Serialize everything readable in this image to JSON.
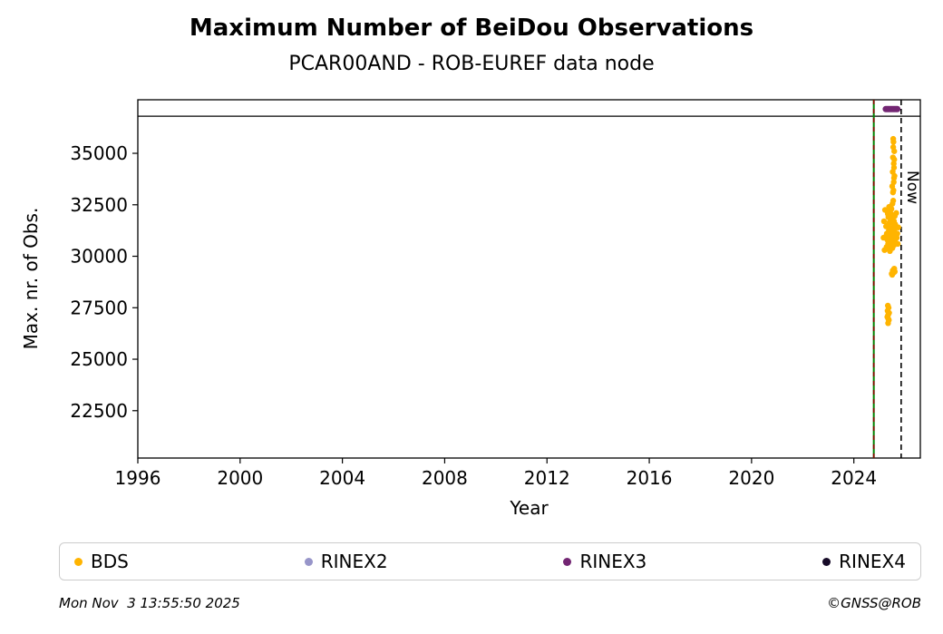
{
  "title": "Maximum Number of BeiDou Observations",
  "subtitle": "PCAR00AND - ROB-EUREF data node",
  "footer": {
    "timestamp": "Mon Nov  3 13:55:50 2025",
    "credit": "©GNSS@ROB"
  },
  "legend": [
    {
      "label": "BDS",
      "color": "#FFB400"
    },
    {
      "label": "RINEX2",
      "color": "#9795C9"
    },
    {
      "label": "RINEX3",
      "color": "#732673"
    },
    {
      "label": "RINEX4",
      "color": "#170B28"
    }
  ],
  "chart_data": {
    "type": "scatter",
    "title": "Maximum Number of BeiDou Observations",
    "subtitle": "PCAR00AND - ROB-EUREF data node",
    "xlabel": "Year",
    "ylabel": "Max. nr. of Obs.",
    "xlim": [
      1996,
      2026.6
    ],
    "ylim": [
      20200,
      37600
    ],
    "x_ticks": [
      1996,
      2000,
      2004,
      2008,
      2012,
      2016,
      2020,
      2024
    ],
    "y_ticks": [
      22500,
      25000,
      27500,
      30000,
      32500,
      35000
    ],
    "grid": false,
    "legend_position": "bottom",
    "annotations": {
      "now_line": {
        "x": 2025.85,
        "label": "Now",
        "style": "dashed",
        "color": "#000000"
      },
      "event_line_green": {
        "x": 2024.78,
        "style": "solid",
        "color": "#008000"
      },
      "event_line_red": {
        "x": 2024.78,
        "style": "dashed",
        "color": "#8B0000"
      },
      "version_band_line_y": 36800
    },
    "series": [
      {
        "name": "BDS",
        "color": "#FFB400",
        "marker_radius": 3.2,
        "points": [
          [
            2025.16,
            30900
          ],
          [
            2025.18,
            31700
          ],
          [
            2025.2,
            30300
          ],
          [
            2025.22,
            32250
          ],
          [
            2025.24,
            30950
          ],
          [
            2025.26,
            31450
          ],
          [
            2025.28,
            30450
          ],
          [
            2025.29,
            31100
          ],
          [
            2025.3,
            32200
          ],
          [
            2025.31,
            30800
          ],
          [
            2025.32,
            31500
          ],
          [
            2025.33,
            32050
          ],
          [
            2025.34,
            30600
          ],
          [
            2025.35,
            31900
          ],
          [
            2025.36,
            30350
          ],
          [
            2025.37,
            31250
          ],
          [
            2025.38,
            32400
          ],
          [
            2025.39,
            30900
          ],
          [
            2025.4,
            31650
          ],
          [
            2025.41,
            30250
          ],
          [
            2025.42,
            32150
          ],
          [
            2025.43,
            31050
          ],
          [
            2025.44,
            30700
          ],
          [
            2025.45,
            31800
          ],
          [
            2025.46,
            30500
          ],
          [
            2025.47,
            32300
          ],
          [
            2025.48,
            31350
          ],
          [
            2025.49,
            30950
          ],
          [
            2025.5,
            31600
          ],
          [
            2025.51,
            30400
          ],
          [
            2025.52,
            32000
          ],
          [
            2025.53,
            31150
          ],
          [
            2025.54,
            30650
          ],
          [
            2025.55,
            31450
          ],
          [
            2025.56,
            30850
          ],
          [
            2025.57,
            31700
          ],
          [
            2025.58,
            30550
          ],
          [
            2025.59,
            31300
          ],
          [
            2025.6,
            31950
          ],
          [
            2025.61,
            30750
          ],
          [
            2025.62,
            31550
          ],
          [
            2025.64,
            31050
          ],
          [
            2025.66,
            32100
          ],
          [
            2025.68,
            30900
          ],
          [
            2025.7,
            31100
          ],
          [
            2025.72,
            30600
          ],
          [
            2025.74,
            31400
          ],
          [
            2025.5,
            33400
          ],
          [
            2025.51,
            32550
          ],
          [
            2025.52,
            34100
          ],
          [
            2025.53,
            34800
          ],
          [
            2025.53,
            33100
          ],
          [
            2025.54,
            35300
          ],
          [
            2025.54,
            32700
          ],
          [
            2025.54,
            35700
          ],
          [
            2025.55,
            35550
          ],
          [
            2025.55,
            33200
          ],
          [
            2025.56,
            34500
          ],
          [
            2025.56,
            33600
          ],
          [
            2025.57,
            33800
          ],
          [
            2025.57,
            34300
          ],
          [
            2025.58,
            35100
          ],
          [
            2025.58,
            34700
          ],
          [
            2025.59,
            33900
          ],
          [
            2025.48,
            29150
          ],
          [
            2025.5,
            29100
          ],
          [
            2025.52,
            29300
          ],
          [
            2025.55,
            29200
          ],
          [
            2025.56,
            29350
          ],
          [
            2025.58,
            29400
          ],
          [
            2025.6,
            29250
          ],
          [
            2025.31,
            27050
          ],
          [
            2025.32,
            27350
          ],
          [
            2025.33,
            27600
          ],
          [
            2025.34,
            27150
          ],
          [
            2025.34,
            26750
          ],
          [
            2025.35,
            26950
          ],
          [
            2025.36,
            27500
          ],
          [
            2025.37,
            26900
          ],
          [
            2025.38,
            27250
          ]
        ]
      },
      {
        "name": "RINEX2",
        "color": "#9795C9",
        "marker_radius": 3.2,
        "points": []
      },
      {
        "name": "RINEX3",
        "color": "#732673",
        "marker_radius": 3.5,
        "points": [
          [
            2025.25,
            37150
          ],
          [
            2025.3,
            37150
          ],
          [
            2025.35,
            37150
          ],
          [
            2025.4,
            37150
          ],
          [
            2025.45,
            37150
          ],
          [
            2025.5,
            37150
          ],
          [
            2025.55,
            37150
          ],
          [
            2025.6,
            37150
          ],
          [
            2025.65,
            37150
          ],
          [
            2025.7,
            37150
          ]
        ]
      },
      {
        "name": "RINEX4",
        "color": "#170B28",
        "marker_radius": 3.2,
        "points": []
      }
    ]
  }
}
